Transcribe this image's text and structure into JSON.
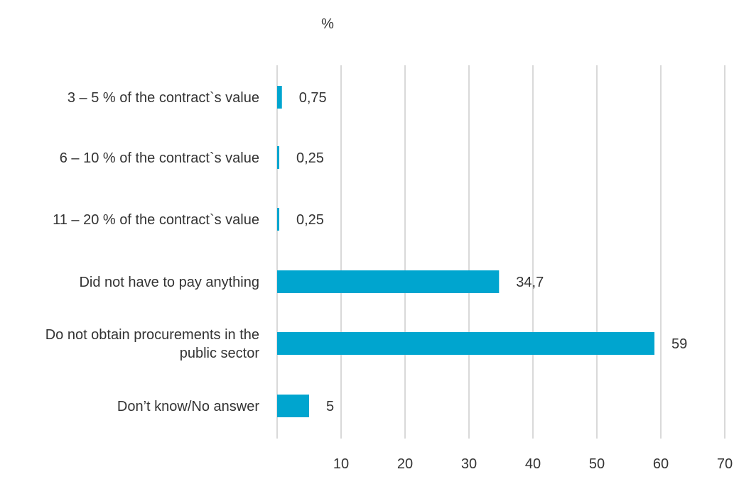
{
  "chart_data": {
    "type": "bar",
    "orientation": "horizontal",
    "unit_label": "%",
    "categories": [
      "3 – 5 % of the contract`s value",
      "6 – 10 % of the contract`s value",
      "11 – 20 % of the contract`s value",
      "Did not have to pay anything",
      "Do not obtain procurements in the public sector",
      "Don’t know/No answer"
    ],
    "category_lines": [
      [
        "3 – 5 % of the contract`s value"
      ],
      [
        "6 – 10 % of the contract`s value"
      ],
      [
        "11 – 20 % of the contract`s value"
      ],
      [
        "Did not have to pay anything"
      ],
      [
        "Do not obtain procurements in the",
        "public sector"
      ],
      [
        "Don’t know/No answer"
      ]
    ],
    "values": [
      0.75,
      0.25,
      0.25,
      34.7,
      59,
      5
    ],
    "value_labels": [
      "0,75",
      "0,25",
      "0,25",
      "34,7",
      "59",
      "5"
    ],
    "xlim": [
      0,
      70
    ],
    "xticks": [
      10,
      20,
      30,
      40,
      50,
      60,
      70
    ],
    "grid": true,
    "legend": "none",
    "bar_color": "#00a5cf"
  }
}
